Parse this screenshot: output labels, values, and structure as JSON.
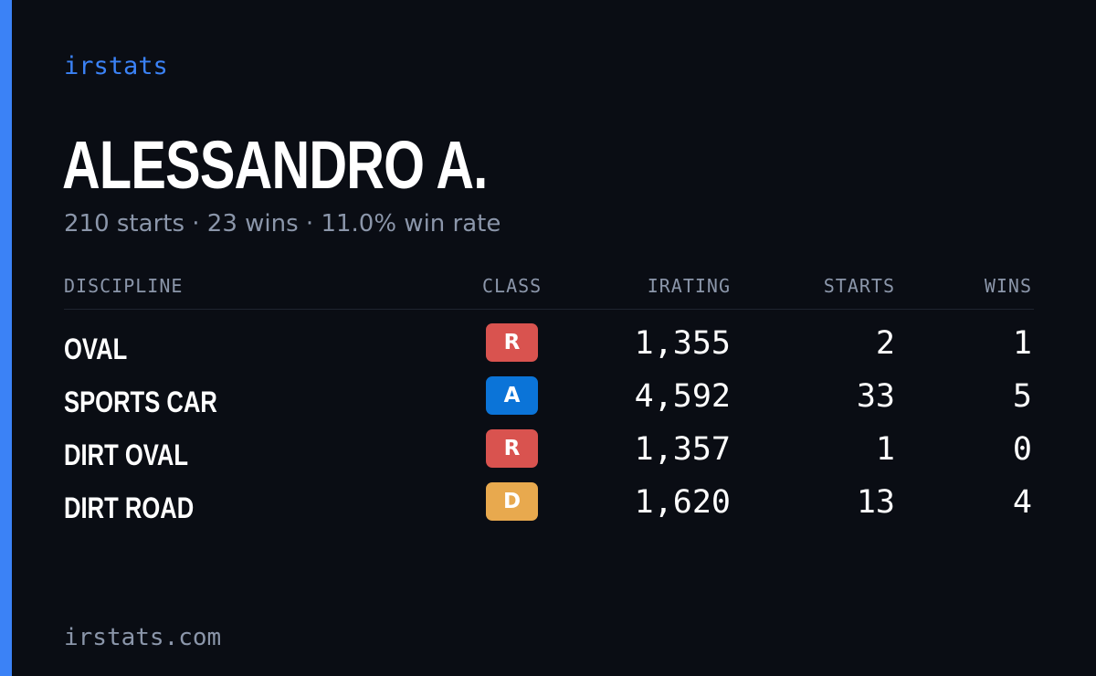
{
  "brand": "irstats",
  "driver": {
    "name": "ALESSANDRO A.",
    "summary": "210 starts · 23 wins · 11.0% win rate"
  },
  "table": {
    "headers": {
      "discipline": "DISCIPLINE",
      "class": "CLASS",
      "irating": "IRATING",
      "starts": "STARTS",
      "wins": "WINS"
    },
    "rows": [
      {
        "discipline": "OVAL",
        "class": "R",
        "class_color": "#d9534f",
        "irating": "1,355",
        "starts": "2",
        "wins": "1"
      },
      {
        "discipline": "SPORTS CAR",
        "class": "A",
        "class_color": "#0b74d8",
        "irating": "4,592",
        "starts": "33",
        "wins": "5"
      },
      {
        "discipline": "DIRT OVAL",
        "class": "R",
        "class_color": "#d9534f",
        "irating": "1,357",
        "starts": "1",
        "wins": "0"
      },
      {
        "discipline": "DIRT ROAD",
        "class": "D",
        "class_color": "#e8a94e",
        "irating": "1,620",
        "starts": "13",
        "wins": "4"
      }
    ]
  },
  "footer": "irstats.com",
  "colors": {
    "accent": "#3b82f6",
    "background": "#0a0d14",
    "muted_text": "#8b96aa"
  }
}
